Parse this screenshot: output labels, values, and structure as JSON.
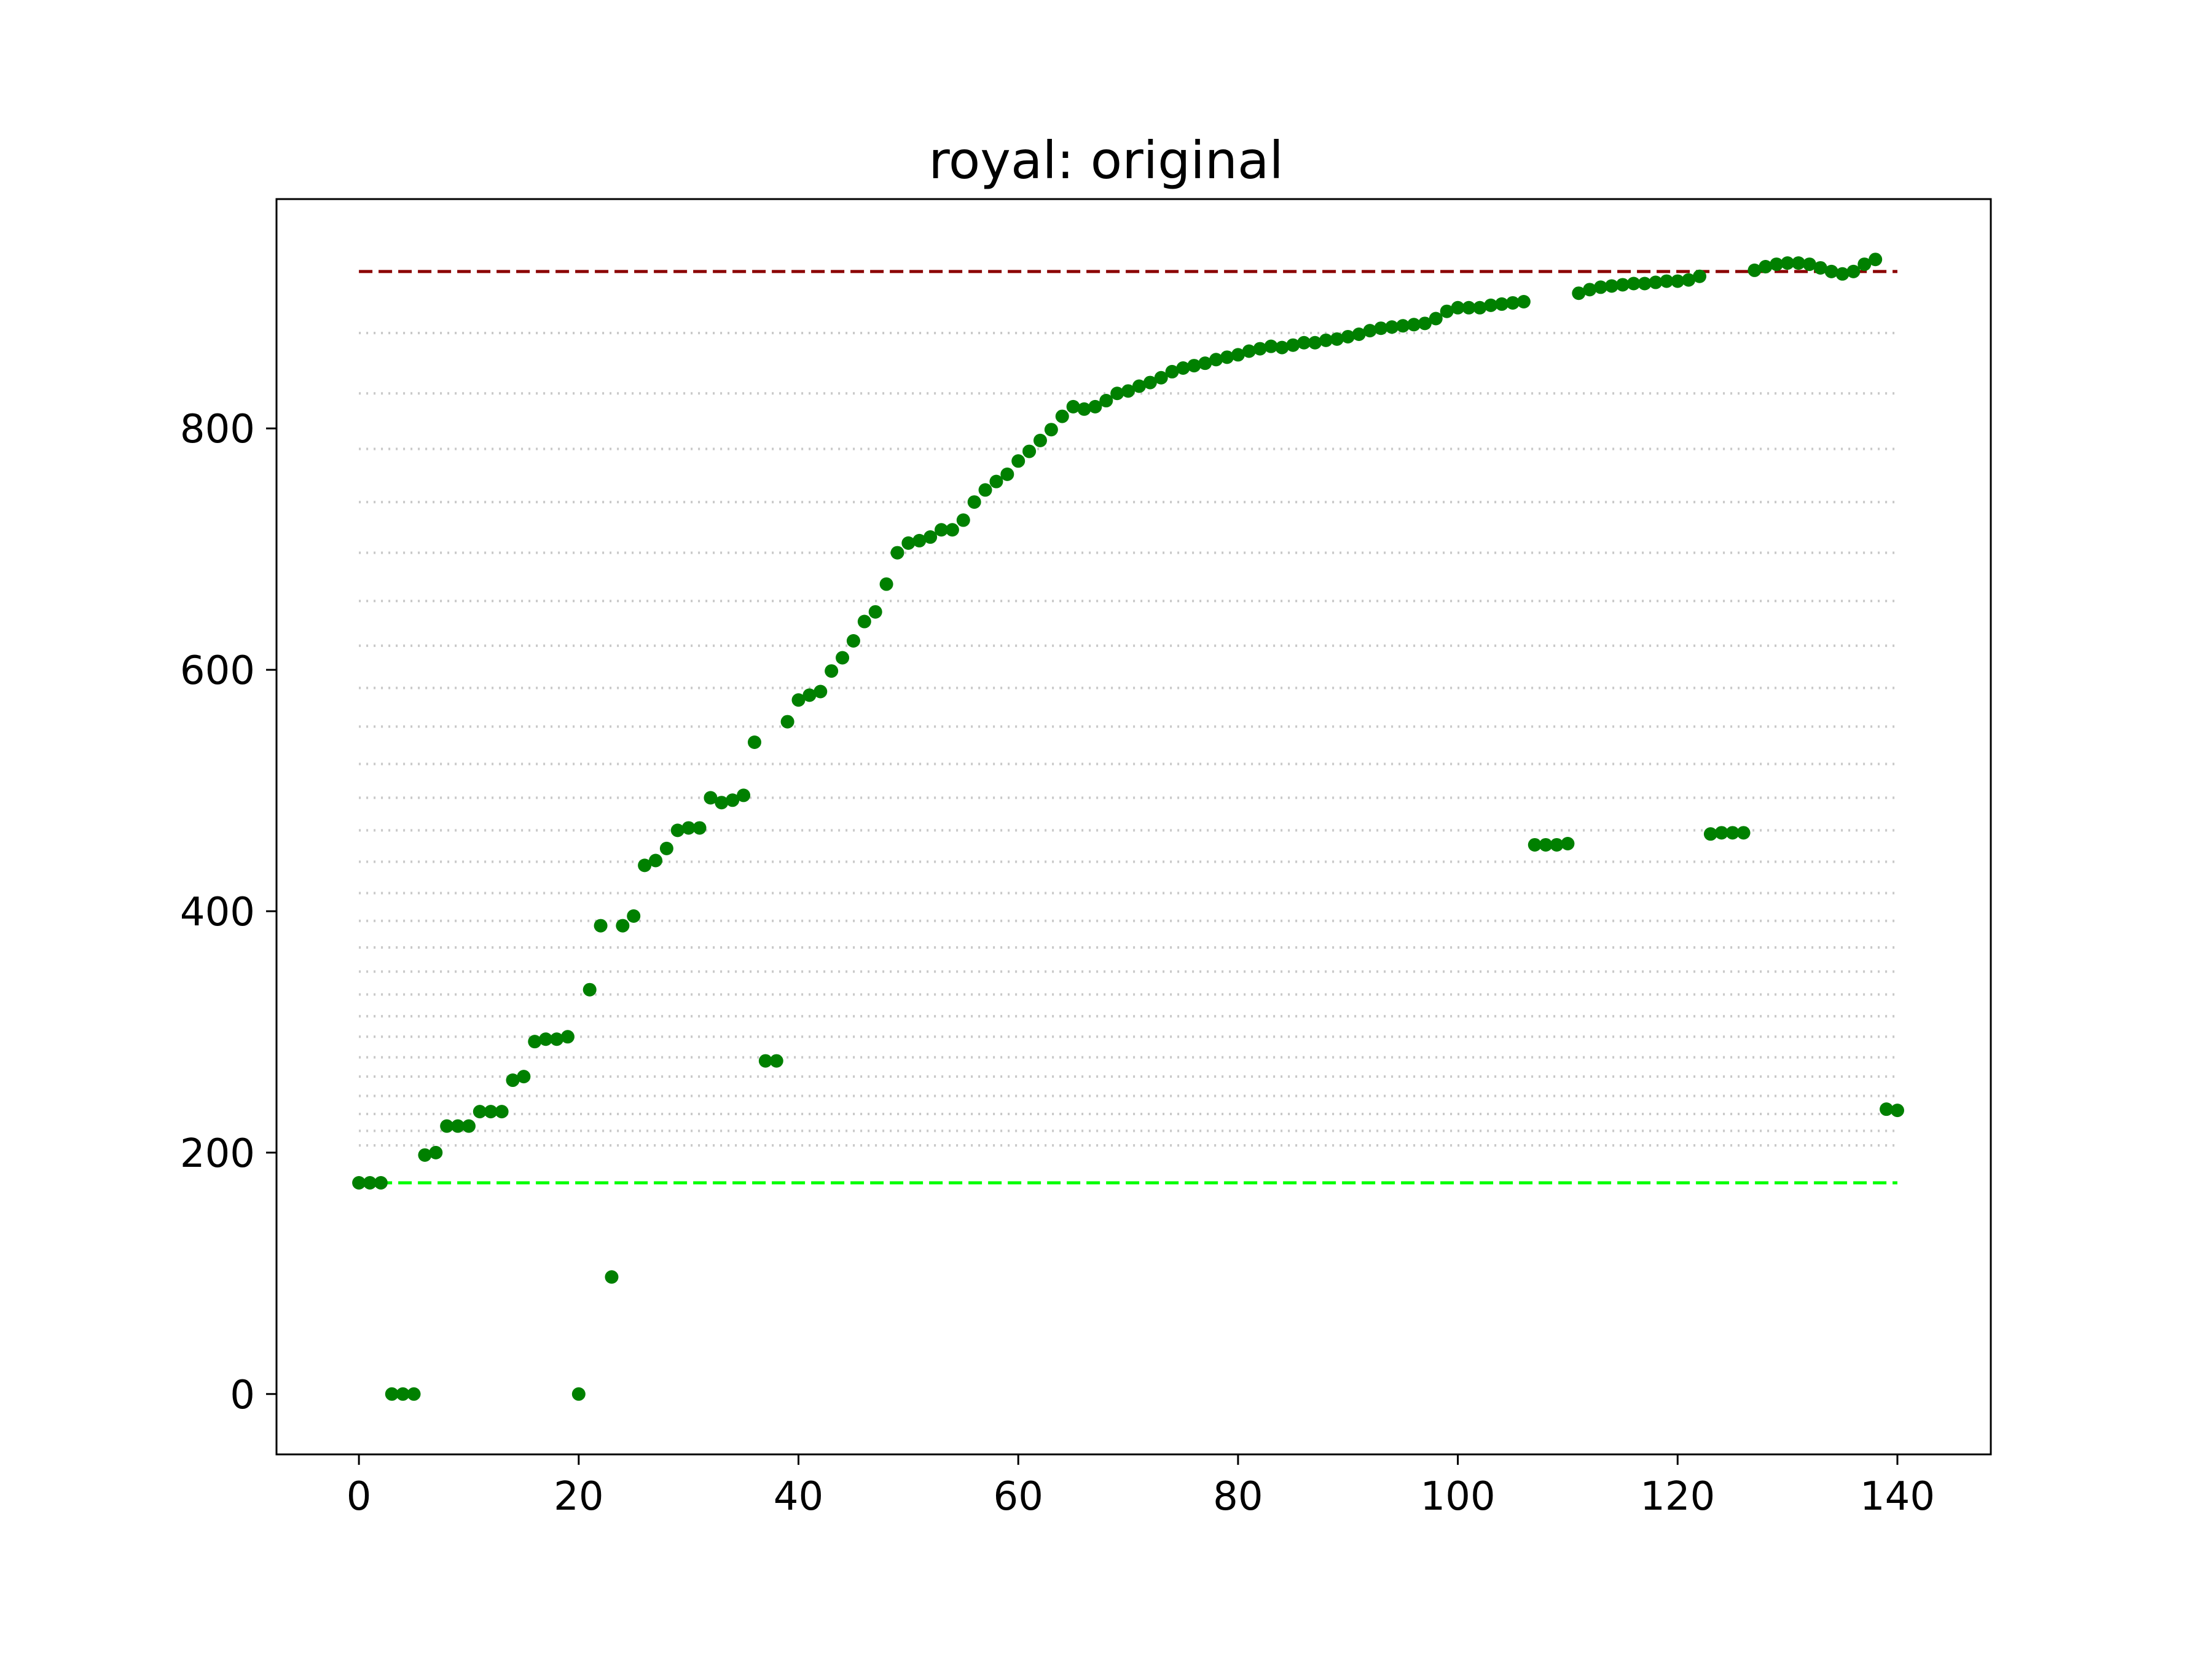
{
  "chart_data": {
    "type": "scatter",
    "title": "royal: original",
    "xlabel": "",
    "ylabel": "",
    "xlim": [
      -7.5,
      148.5
    ],
    "ylim": [
      -50,
      990
    ],
    "x_ticks": [
      0,
      20,
      40,
      60,
      80,
      100,
      120,
      140
    ],
    "y_ticks": [
      0,
      200,
      400,
      600,
      800
    ],
    "grid": false,
    "legend": null,
    "point_color": "#008000",
    "reference_lines": [
      {
        "y": 930,
        "color": "#8b0000",
        "style": "dashed"
      },
      {
        "y": 175,
        "color": "#00ff00",
        "style": "dashed"
      }
    ],
    "dotted_lines": {
      "color": "#c8c8c8",
      "y_values": [
        206,
        218,
        232,
        247,
        263,
        279,
        296,
        313,
        331,
        350,
        370,
        392,
        415,
        441,
        467,
        494,
        522,
        553,
        585,
        620,
        657,
        697,
        739,
        783,
        829,
        879
      ]
    },
    "series": [
      {
        "x": [
          0,
          1,
          2,
          3,
          4,
          5,
          6,
          7,
          8,
          9,
          10,
          11,
          12,
          13,
          14,
          15,
          16,
          17,
          18,
          19,
          20,
          21,
          22,
          23,
          24,
          25,
          26,
          27,
          28,
          29,
          30,
          31,
          32,
          33,
          34,
          35,
          36,
          37,
          38,
          39,
          40,
          41,
          42,
          43,
          44,
          45,
          46,
          47,
          48,
          49,
          50,
          51,
          52,
          53,
          54,
          55,
          56,
          57,
          58,
          59,
          60,
          61,
          62,
          63,
          64,
          65,
          66,
          67,
          68,
          69,
          70,
          71,
          72,
          73,
          74,
          75,
          76,
          77,
          78,
          79,
          80,
          81,
          82,
          83,
          84,
          85,
          86,
          87,
          88,
          89,
          90,
          91,
          92,
          93,
          94,
          95,
          96,
          97,
          98,
          99,
          100,
          101,
          102,
          103,
          104,
          105,
          106,
          107,
          108,
          109,
          110,
          111,
          112,
          113,
          114,
          115,
          116,
          117,
          118,
          119,
          120,
          121,
          122,
          123,
          124,
          125,
          126,
          127,
          128,
          129,
          130,
          131,
          132,
          133,
          134,
          135,
          136,
          137,
          138,
          139,
          140
        ],
        "y": [
          175,
          175,
          175,
          0,
          0,
          0,
          198,
          200,
          222,
          222,
          222,
          234,
          234,
          234,
          260,
          263,
          292,
          294,
          294,
          296,
          0,
          335,
          388,
          97,
          388,
          396,
          438,
          442,
          452,
          467,
          469,
          469,
          494,
          490,
          492,
          496,
          540,
          276,
          276,
          557,
          575,
          579,
          582,
          599,
          610,
          624,
          640,
          648,
          671,
          697,
          705,
          707,
          710,
          716,
          716,
          724,
          739,
          749,
          756,
          762,
          773,
          781,
          790,
          799,
          810,
          818,
          816,
          818,
          823,
          829,
          831,
          835,
          838,
          842,
          847,
          850,
          852,
          854,
          857,
          859,
          861,
          864,
          866,
          868,
          867,
          869,
          871,
          871,
          873,
          874,
          876,
          878,
          881,
          883,
          884,
          885,
          886,
          887,
          891,
          897,
          900,
          900,
          900,
          902,
          903,
          904,
          905,
          455,
          455,
          455,
          456,
          912,
          915,
          917,
          918,
          919,
          920,
          920,
          921,
          922,
          922,
          923,
          926,
          464,
          465,
          465,
          465,
          931,
          934,
          936,
          937,
          937,
          936,
          933,
          930,
          928,
          930,
          936,
          940,
          236,
          235
        ]
      }
    ]
  }
}
